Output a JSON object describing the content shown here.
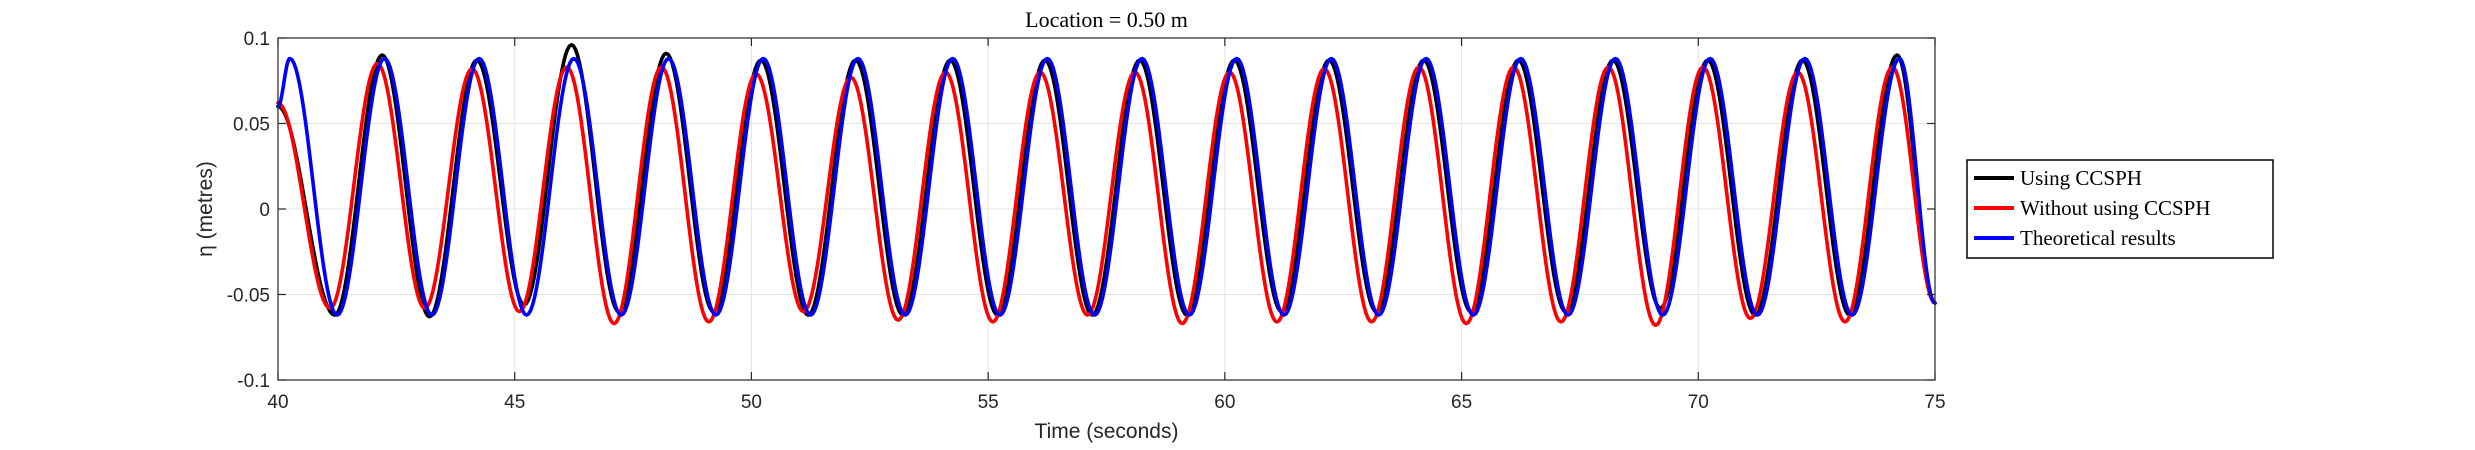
{
  "chart_data": {
    "type": "line",
    "title": "Location = 0.50 m",
    "xlabel": "Time (seconds)",
    "ylabel": "η (metres)",
    "xlim": [
      40,
      75
    ],
    "ylim": [
      -0.1,
      0.1
    ],
    "xticks": [
      40,
      45,
      50,
      55,
      60,
      65,
      70,
      75
    ],
    "yticks": [
      -0.1,
      -0.05,
      0,
      0.05,
      0.1
    ],
    "xtick_labels": [
      "40",
      "45",
      "50",
      "55",
      "60",
      "65",
      "70",
      "75"
    ],
    "ytick_labels": [
      "-0.1",
      "-0.05",
      "0",
      "0.05",
      "0.1"
    ],
    "grid": true,
    "legend_position": "outside-right",
    "period_seconds": 2.0,
    "series": [
      {
        "name": "Using CCSPH",
        "color": "#000000",
        "crest_times": [
          42.2,
          44.2,
          46.2,
          48.2,
          50.2,
          52.2,
          54.2,
          56.2,
          58.2,
          60.2,
          62.2,
          64.2,
          66.2,
          68.2,
          70.2,
          72.2,
          74.2
        ],
        "crest_values": [
          0.09,
          0.087,
          0.096,
          0.091,
          0.087,
          0.087,
          0.087,
          0.087,
          0.087,
          0.087,
          0.087,
          0.087,
          0.087,
          0.087,
          0.087,
          0.087,
          0.09
        ],
        "trough_times": [
          41.2,
          43.2,
          45.2,
          47.2,
          49.2,
          51.2,
          53.2,
          55.2,
          57.2,
          59.2,
          61.2,
          63.2,
          65.2,
          67.2,
          69.2,
          71.2,
          73.2
        ],
        "trough_values": [
          -0.062,
          -0.063,
          -0.056,
          -0.06,
          -0.06,
          -0.062,
          -0.062,
          -0.062,
          -0.062,
          -0.062,
          -0.06,
          -0.06,
          -0.06,
          -0.06,
          -0.058,
          -0.062,
          -0.062
        ],
        "start": [
          40.0,
          0.06
        ],
        "end": [
          75.0,
          -0.055
        ]
      },
      {
        "name": "Without using CCSPH",
        "color": "#ff0000",
        "crest_times": [
          42.1,
          44.1,
          46.1,
          48.1,
          50.1,
          52.1,
          54.1,
          56.1,
          58.1,
          60.1,
          62.1,
          64.1,
          66.1,
          68.1,
          70.1,
          72.1,
          74.1
        ],
        "crest_values": [
          0.085,
          0.082,
          0.083,
          0.083,
          0.079,
          0.077,
          0.08,
          0.08,
          0.08,
          0.08,
          0.082,
          0.083,
          0.083,
          0.083,
          0.083,
          0.08,
          0.083
        ],
        "trough_times": [
          41.1,
          43.1,
          45.1,
          47.1,
          49.1,
          51.1,
          53.1,
          55.1,
          57.1,
          59.1,
          61.1,
          63.1,
          65.1,
          67.1,
          69.1,
          71.1,
          73.1
        ],
        "trough_values": [
          -0.058,
          -0.058,
          -0.06,
          -0.067,
          -0.066,
          -0.06,
          -0.065,
          -0.066,
          -0.062,
          -0.067,
          -0.066,
          -0.066,
          -0.067,
          -0.066,
          -0.068,
          -0.064,
          -0.066
        ],
        "start": [
          40.0,
          0.062
        ],
        "end": [
          75.0,
          -0.055
        ]
      },
      {
        "name": "Theoretical results",
        "color": "#0000ff",
        "crest_times": [
          40.25,
          42.25,
          44.25,
          46.25,
          48.25,
          50.25,
          52.25,
          54.25,
          56.25,
          58.25,
          60.25,
          62.25,
          64.25,
          66.25,
          68.25,
          70.25,
          72.25,
          74.25
        ],
        "crest_values": [
          0.088,
          0.088,
          0.088,
          0.088,
          0.088,
          0.088,
          0.088,
          0.088,
          0.088,
          0.088,
          0.088,
          0.088,
          0.088,
          0.088,
          0.088,
          0.088,
          0.088,
          0.088
        ],
        "trough_times": [
          41.25,
          43.25,
          45.25,
          47.25,
          49.25,
          51.25,
          53.25,
          55.25,
          57.25,
          59.25,
          61.25,
          63.25,
          65.25,
          67.25,
          69.25,
          71.25,
          73.25
        ],
        "trough_values": [
          -0.062,
          -0.062,
          -0.062,
          -0.062,
          -0.062,
          -0.062,
          -0.062,
          -0.062,
          -0.062,
          -0.062,
          -0.062,
          -0.062,
          -0.062,
          -0.062,
          -0.062,
          -0.062,
          -0.062
        ],
        "start": [
          40.0,
          0.06
        ],
        "end": [
          75.0,
          -0.055
        ]
      }
    ]
  }
}
